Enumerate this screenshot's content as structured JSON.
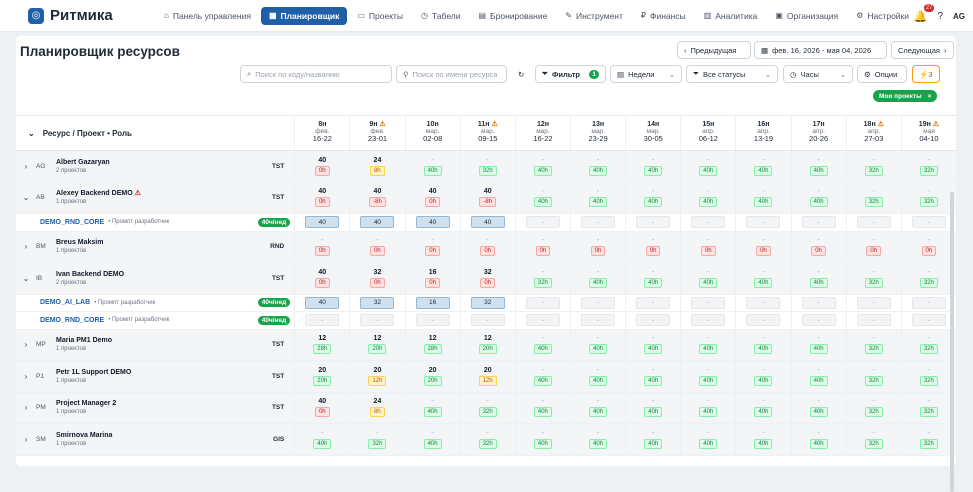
{
  "app": {
    "logo_mark": "◎",
    "name": "Ритмика"
  },
  "nav": [
    {
      "id": "dashboard",
      "label": "Панель управления",
      "icon": "⌂",
      "active": false
    },
    {
      "id": "planner",
      "label": "Планировщик",
      "icon": "▦",
      "active": true
    },
    {
      "id": "projects",
      "label": "Проекты",
      "icon": "▭",
      "active": false
    },
    {
      "id": "timesheets",
      "label": "Табели",
      "icon": "◷",
      "active": false
    },
    {
      "id": "booking",
      "label": "Бронирование",
      "icon": "▤",
      "active": false
    },
    {
      "id": "tools",
      "label": "Инструмент",
      "icon": "✎",
      "active": false
    },
    {
      "id": "finance",
      "label": "Финансы",
      "icon": "₽",
      "active": false
    },
    {
      "id": "analytics",
      "label": "Аналитика",
      "icon": "▥",
      "active": false
    },
    {
      "id": "org",
      "label": "Организация",
      "icon": "▣",
      "active": false
    },
    {
      "id": "settings",
      "label": "Настройки",
      "icon": "⚙",
      "active": false
    }
  ],
  "header_right": {
    "bell": "🔔",
    "notif_count": "27",
    "help": "?",
    "avatar": "AG"
  },
  "page": {
    "title": "Планировщик ресурсов",
    "prev": "Предыдущая",
    "prev_icon": "‹",
    "date_range": "фев. 16, 2026 - мая 04, 2026",
    "calendar_icon": "▦",
    "next": "Следующая",
    "next_icon": "›",
    "search_code_placeholder": "Поиск по коду/названию",
    "search_resource_placeholder": "Поиск по имени ресурса",
    "search_icon": "⌕",
    "user_icon": "⚲",
    "refresh_icon": "↻",
    "filter_icon": "⏷",
    "filter": "Фильтр",
    "filter_count": "1",
    "weeks_icon": "▤",
    "weeks": "Недели",
    "status_icon": "⏷",
    "statuses": "Все статусы",
    "hours_icon": "◷",
    "hours": "Часы",
    "options_icon": "⚙",
    "options": "Опции",
    "lightning": "⚡3",
    "chip": "Мои проекты",
    "chip_close": "×"
  },
  "grid": {
    "header_label": "Ресурс / Проект • Роль",
    "header_chevron": "⌄",
    "warn_icon": "⚠",
    "weeks": [
      {
        "wk": "8н",
        "mon": "фев.",
        "rng": "16-22",
        "warn": false
      },
      {
        "wk": "9н",
        "mon": "фев.",
        "rng": "23-01",
        "warn": true
      },
      {
        "wk": "10н",
        "mon": "мар.",
        "rng": "02-08",
        "warn": false
      },
      {
        "wk": "11н",
        "mon": "мар.",
        "rng": "09-15",
        "warn": true
      },
      {
        "wk": "12н",
        "mon": "мар.",
        "rng": "16-22",
        "warn": false
      },
      {
        "wk": "13н",
        "mon": "мар.",
        "rng": "23-29",
        "warn": false
      },
      {
        "wk": "14н",
        "mon": "мар.",
        "rng": "30-05",
        "warn": false
      },
      {
        "wk": "15н",
        "mon": "апр.",
        "rng": "06-12",
        "warn": false
      },
      {
        "wk": "16н",
        "mon": "апр.",
        "rng": "13-19",
        "warn": false
      },
      {
        "wk": "17н",
        "mon": "апр.",
        "rng": "20-26",
        "warn": false
      },
      {
        "wk": "18н",
        "mon": "апр.",
        "rng": "27-03",
        "warn": true
      },
      {
        "wk": "19н",
        "mon": "мая",
        "rng": "04-10",
        "warn": true
      }
    ],
    "rows": [
      {
        "type": "res",
        "chev": "›",
        "ini": "AG",
        "name": "Albert Gazaryan",
        "sub": "2 проектов",
        "code": "TST",
        "warn": false,
        "cells": [
          [
            "40",
            "0h",
            "r"
          ],
          [
            "24",
            "8h",
            "y"
          ],
          [
            "-",
            "40h",
            "g"
          ],
          [
            "-",
            "32h",
            "g"
          ],
          [
            "-",
            "40h",
            "g"
          ],
          [
            "-",
            "40h",
            "g"
          ],
          [
            "-",
            "40h",
            "g"
          ],
          [
            "-",
            "40h",
            "g"
          ],
          [
            "-",
            "40h",
            "g"
          ],
          [
            "-",
            "40h",
            "g"
          ],
          [
            "-",
            "32h",
            "g"
          ],
          [
            "-",
            "32h",
            "g"
          ]
        ]
      },
      {
        "type": "res",
        "chev": "⌄",
        "ini": "AB",
        "name": "Alexey Backend DEMO",
        "sub": "1 проектов",
        "code": "TST",
        "warn": true,
        "cells": [
          [
            "40",
            "0h",
            "r"
          ],
          [
            "40",
            "-8h",
            "r"
          ],
          [
            "40",
            "0h",
            "r"
          ],
          [
            "40",
            "-8h",
            "r"
          ],
          [
            "-",
            "40h",
            "g"
          ],
          [
            "-",
            "40h",
            "g"
          ],
          [
            "-",
            "40h",
            "g"
          ],
          [
            "-",
            "40h",
            "g"
          ],
          [
            "-",
            "40h",
            "g"
          ],
          [
            "-",
            "40h",
            "g"
          ],
          [
            "-",
            "32h",
            "g"
          ],
          [
            "-",
            "32h",
            "g"
          ]
        ]
      },
      {
        "type": "proj",
        "name": "DEMO_RND_CORE",
        "role": "• Промпт разработчик",
        "rate": "40ч/нед",
        "cells": [
          "40",
          "40",
          "40",
          "40",
          "-",
          "-",
          "-",
          "-",
          "-",
          "-",
          "-",
          "-"
        ]
      },
      {
        "type": "res",
        "chev": "›",
        "ini": "BM",
        "name": "Breus Maksim",
        "sub": "1 проектов",
        "code": "RND",
        "warn": false,
        "cells": [
          [
            "-",
            "0h",
            "r"
          ],
          [
            "-",
            "0h",
            "r"
          ],
          [
            "-",
            "0h",
            "r"
          ],
          [
            "-",
            "0h",
            "r"
          ],
          [
            "-",
            "0h",
            "r"
          ],
          [
            "-",
            "0h",
            "r"
          ],
          [
            "-",
            "0h",
            "r"
          ],
          [
            "-",
            "0h",
            "r"
          ],
          [
            "-",
            "0h",
            "r"
          ],
          [
            "-",
            "0h",
            "r"
          ],
          [
            "-",
            "0h",
            "r"
          ],
          [
            "-",
            "0h",
            "r"
          ]
        ]
      },
      {
        "type": "res",
        "chev": "⌄",
        "ini": "IB",
        "name": "Ivan Backend DEMO",
        "sub": "2 проектов",
        "code": "TST",
        "warn": false,
        "cells": [
          [
            "40",
            "0h",
            "r"
          ],
          [
            "32",
            "0h",
            "r"
          ],
          [
            "16",
            "0h",
            "r"
          ],
          [
            "32",
            "0h",
            "r"
          ],
          [
            "-",
            "32h",
            "g"
          ],
          [
            "-",
            "40h",
            "g"
          ],
          [
            "-",
            "40h",
            "g"
          ],
          [
            "-",
            "40h",
            "g"
          ],
          [
            "-",
            "40h",
            "g"
          ],
          [
            "-",
            "40h",
            "g"
          ],
          [
            "-",
            "32h",
            "g"
          ],
          [
            "-",
            "32h",
            "g"
          ]
        ]
      },
      {
        "type": "proj",
        "name": "DEMO_AI_LAB",
        "role": "• Промпт разработчик",
        "rate": "40ч/нед",
        "cells": [
          "40",
          "32",
          "16",
          "32",
          "-",
          "-",
          "-",
          "-",
          "-",
          "-",
          "-",
          "-"
        ]
      },
      {
        "type": "proj",
        "name": "DEMO_RND_CORE",
        "role": "• Промпт разработчик",
        "rate": "40ч/нед",
        "cells": [
          "-",
          "-",
          "-",
          "-",
          "-",
          "-",
          "-",
          "-",
          "-",
          "-",
          "-",
          "-"
        ]
      },
      {
        "type": "res",
        "chev": "›",
        "ini": "MP",
        "name": "Maria PM1 Demo",
        "sub": "1 проектов",
        "code": "TST",
        "warn": false,
        "cells": [
          [
            "12",
            "28h",
            "g"
          ],
          [
            "12",
            "20h",
            "g"
          ],
          [
            "12",
            "28h",
            "g"
          ],
          [
            "12",
            "20h",
            "g"
          ],
          [
            "-",
            "40h",
            "g"
          ],
          [
            "-",
            "40h",
            "g"
          ],
          [
            "-",
            "40h",
            "g"
          ],
          [
            "-",
            "40h",
            "g"
          ],
          [
            "-",
            "40h",
            "g"
          ],
          [
            "-",
            "40h",
            "g"
          ],
          [
            "-",
            "32h",
            "g"
          ],
          [
            "-",
            "32h",
            "g"
          ]
        ]
      },
      {
        "type": "res",
        "chev": "›",
        "ini": "P1",
        "name": "Petr 1L Support DEMO",
        "sub": "1 проектов",
        "code": "TST",
        "warn": false,
        "cells": [
          [
            "20",
            "20h",
            "g"
          ],
          [
            "20",
            "12h",
            "y"
          ],
          [
            "20",
            "20h",
            "g"
          ],
          [
            "20",
            "12h",
            "y"
          ],
          [
            "-",
            "40h",
            "g"
          ],
          [
            "-",
            "40h",
            "g"
          ],
          [
            "-",
            "40h",
            "g"
          ],
          [
            "-",
            "40h",
            "g"
          ],
          [
            "-",
            "40h",
            "g"
          ],
          [
            "-",
            "40h",
            "g"
          ],
          [
            "-",
            "32h",
            "g"
          ],
          [
            "-",
            "32h",
            "g"
          ]
        ]
      },
      {
        "type": "res",
        "chev": "›",
        "ini": "PM",
        "name": "Project Manager 2",
        "sub": "1 проектов",
        "code": "TST",
        "warn": false,
        "cells": [
          [
            "40",
            "0h",
            "r"
          ],
          [
            "24",
            "8h",
            "y"
          ],
          [
            "-",
            "40h",
            "g"
          ],
          [
            "-",
            "32h",
            "g"
          ],
          [
            "-",
            "40h",
            "g"
          ],
          [
            "-",
            "40h",
            "g"
          ],
          [
            "-",
            "40h",
            "g"
          ],
          [
            "-",
            "40h",
            "g"
          ],
          [
            "-",
            "40h",
            "g"
          ],
          [
            "-",
            "40h",
            "g"
          ],
          [
            "-",
            "32h",
            "g"
          ],
          [
            "-",
            "32h",
            "g"
          ]
        ]
      },
      {
        "type": "res",
        "chev": "›",
        "ini": "SM",
        "name": "Smirnova Marina",
        "sub": "1 проектов",
        "code": "GIS",
        "warn": false,
        "cells": [
          [
            "-",
            "40h",
            "g"
          ],
          [
            "-",
            "32h",
            "g"
          ],
          [
            "-",
            "40h",
            "g"
          ],
          [
            "-",
            "32h",
            "g"
          ],
          [
            "-",
            "40h",
            "g"
          ],
          [
            "-",
            "40h",
            "g"
          ],
          [
            "-",
            "40h",
            "g"
          ],
          [
            "-",
            "40h",
            "g"
          ],
          [
            "-",
            "40h",
            "g"
          ],
          [
            "-",
            "40h",
            "g"
          ],
          [
            "-",
            "32h",
            "g"
          ],
          [
            "-",
            "32h",
            "g"
          ]
        ]
      }
    ]
  }
}
